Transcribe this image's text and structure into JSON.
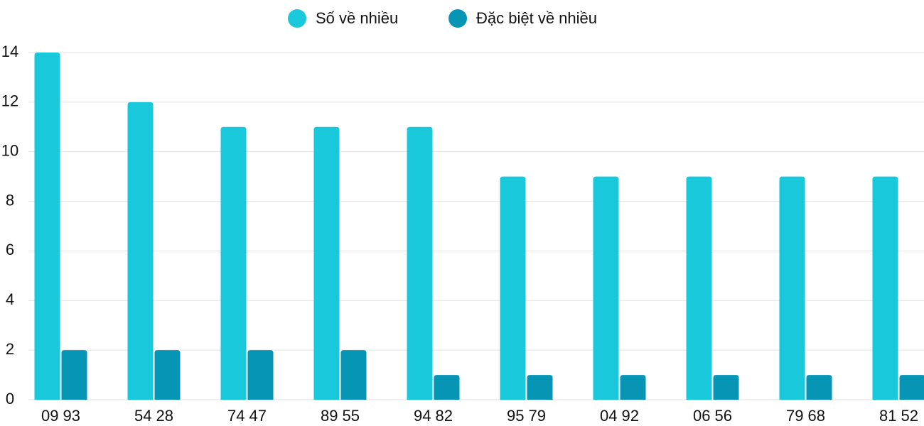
{
  "chart_data": {
    "type": "bar",
    "categories": [
      "09 93",
      "54 28",
      "74 47",
      "89 55",
      "94 82",
      "95 79",
      "04 92",
      "06 56",
      "79 68",
      "81 52"
    ],
    "series": [
      {
        "name": "Số về nhiều",
        "color": "#1ac8db",
        "values": [
          14,
          12,
          11,
          11,
          11,
          9,
          9,
          9,
          9,
          9
        ]
      },
      {
        "name": "Đặc biệt về nhiều",
        "color": "#0795b6",
        "values": [
          2,
          2,
          2,
          2,
          1,
          1,
          1,
          1,
          1,
          1
        ]
      }
    ],
    "ylim": [
      0,
      14
    ],
    "yticks": [
      0,
      2,
      4,
      6,
      8,
      10,
      12,
      14
    ],
    "grid": true
  }
}
